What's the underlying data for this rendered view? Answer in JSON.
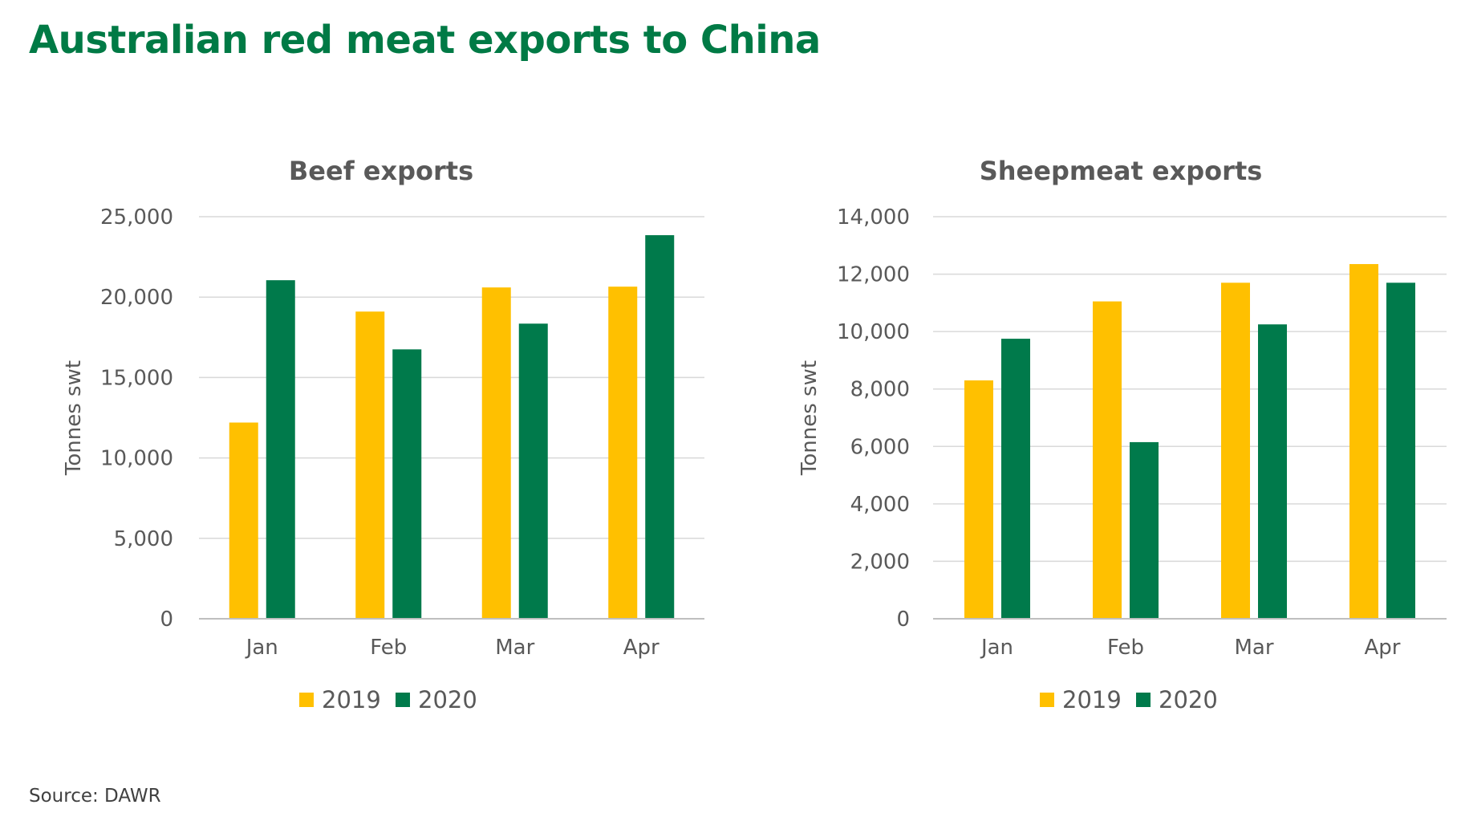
{
  "title": "Australian red meat exports to China",
  "source": "Source: DAWR",
  "colors": {
    "title": "#007a45",
    "series_2019": "#ffc000",
    "series_2020": "#007a4b"
  },
  "chart_data": [
    {
      "type": "bar",
      "title": "Beef exports",
      "ylabel": "Tonnes swt",
      "xlabel": "",
      "categories": [
        "Jan",
        "Feb",
        "Mar",
        "Apr"
      ],
      "series": [
        {
          "name": "2019",
          "values": [
            12200,
            19100,
            20600,
            20650
          ]
        },
        {
          "name": "2020",
          "values": [
            21050,
            16750,
            18350,
            23850
          ]
        }
      ],
      "ylim": [
        0,
        25000
      ],
      "yticks": [
        0,
        5000,
        10000,
        15000,
        20000,
        25000
      ],
      "ytick_labels": [
        "0",
        "5,000",
        "10,000",
        "15,000",
        "20,000",
        "25,000"
      ],
      "grid": true,
      "legend": "bottom"
    },
    {
      "type": "bar",
      "title": "Sheepmeat exports",
      "ylabel": "Tonnes swt",
      "xlabel": "",
      "categories": [
        "Jan",
        "Feb",
        "Mar",
        "Apr"
      ],
      "series": [
        {
          "name": "2019",
          "values": [
            8300,
            11050,
            11700,
            12350
          ]
        },
        {
          "name": "2020",
          "values": [
            9750,
            6150,
            10250,
            11700
          ]
        }
      ],
      "ylim": [
        0,
        14000
      ],
      "yticks": [
        0,
        2000,
        4000,
        6000,
        8000,
        10000,
        12000,
        14000
      ],
      "ytick_labels": [
        "0",
        "2,000",
        "4,000",
        "6,000",
        "8,000",
        "10,000",
        "12,000",
        "14,000"
      ],
      "grid": true,
      "legend": "bottom"
    }
  ]
}
